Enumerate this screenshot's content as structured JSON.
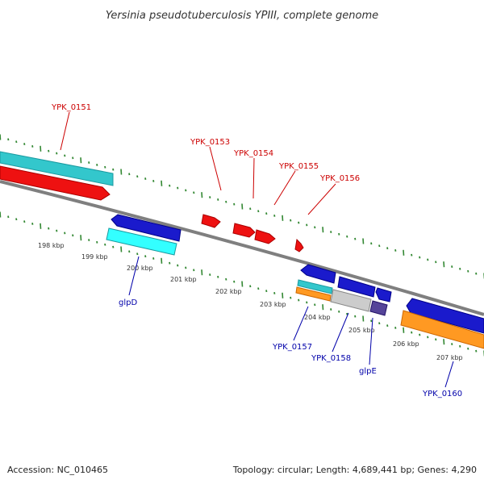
{
  "title": "Yersinia pseudotuberculosis YPIII, complete genome",
  "footer": {
    "accession": "Accession: NC_010465",
    "topology": "Topology: circular; Length: 4,689,441 bp; Genes: 4,290"
  },
  "colors": {
    "upper_label": "#cc0000",
    "lower_label": "#0000aa",
    "tick_mark": "#338833",
    "backbone": "#888888"
  },
  "kbp_ticks": [
    "198 kbp",
    "199 kbp",
    "200 kbp",
    "201 kbp",
    "202 kbp",
    "203 kbp",
    "204 kbp",
    "205 kbp",
    "206 kbp",
    "207 kbp"
  ],
  "upper_gene_labels": [
    "YPK_0151",
    "YPK_0153",
    "YPK_0154",
    "YPK_0155",
    "YPK_0156"
  ],
  "lower_gene_labels": [
    "glpD",
    "YPK_0157",
    "YPK_0158",
    "glpE",
    "YPK_0160"
  ]
}
